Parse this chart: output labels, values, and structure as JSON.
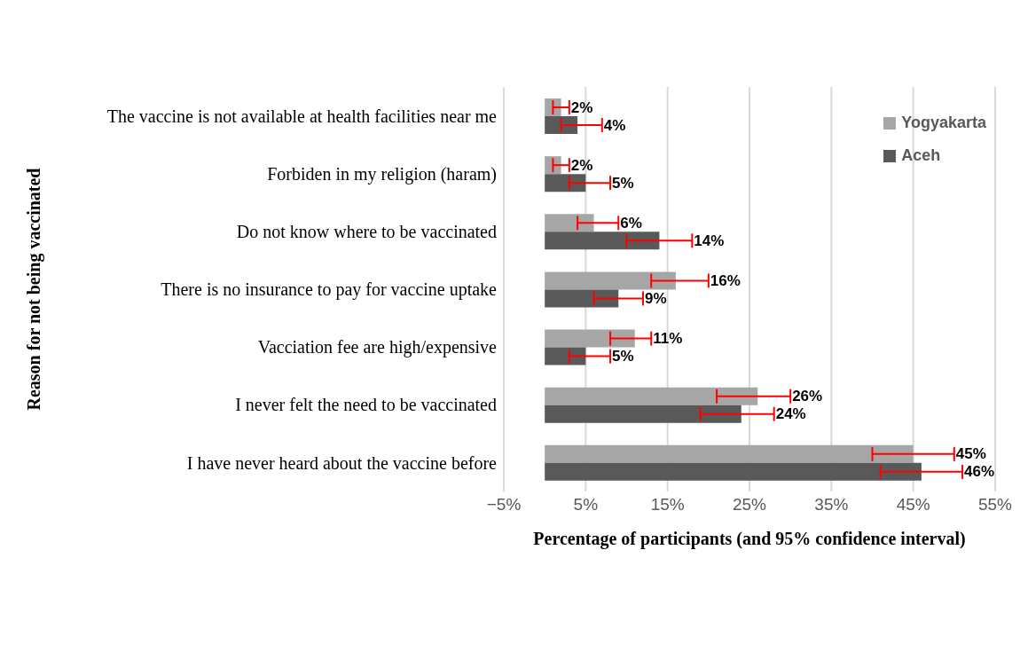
{
  "chart_data": {
    "type": "bar",
    "orientation": "horizontal",
    "xlabel": "Percentage of participants (and 95% confidence interval)",
    "ylabel": "Reason for not being vaccinated",
    "categories": [
      "The vaccine is not available at health facilities near me",
      "Forbiden in my religion (haram)",
      "Do not know where to be vaccinated",
      "There is no insurance to pay for vaccine uptake",
      "Vacciation fee are high/expensive",
      "I never felt the need to be vaccinated",
      "I have never heard about the vaccine before"
    ],
    "series": [
      {
        "name": "Yogyakarta",
        "color": "#a6a6a6",
        "values": [
          2,
          2,
          6,
          16,
          11,
          26,
          45
        ],
        "value_labels": [
          "2%",
          "2%",
          "6%",
          "16%",
          "11%",
          "26%",
          "45%"
        ],
        "errors": [
          [
            1,
            3
          ],
          [
            1,
            3
          ],
          [
            4,
            9
          ],
          [
            13,
            20
          ],
          [
            8,
            13
          ],
          [
            21,
            30
          ],
          [
            40,
            50
          ]
        ]
      },
      {
        "name": "Aceh",
        "color": "#595959",
        "values": [
          4,
          5,
          14,
          9,
          5,
          24,
          46
        ],
        "value_labels": [
          "4%",
          "5%",
          "14%",
          "9%",
          "5%",
          "24%",
          "46%"
        ],
        "errors": [
          [
            2,
            7
          ],
          [
            3,
            8
          ],
          [
            10,
            18
          ],
          [
            6,
            12
          ],
          [
            3,
            8
          ],
          [
            19,
            28
          ],
          [
            41,
            51
          ]
        ]
      }
    ],
    "xlim": [
      -5,
      55
    ],
    "xticks": [
      {
        "value": -5,
        "label": "−5%"
      },
      {
        "value": 5,
        "label": "5%"
      },
      {
        "value": 15,
        "label": "15%"
      },
      {
        "value": 25,
        "label": "25%"
      },
      {
        "value": 35,
        "label": "35%"
      },
      {
        "value": 45,
        "label": "45%"
      },
      {
        "value": 55,
        "label": "55%"
      }
    ],
    "grid": "x",
    "legend": "top right"
  }
}
